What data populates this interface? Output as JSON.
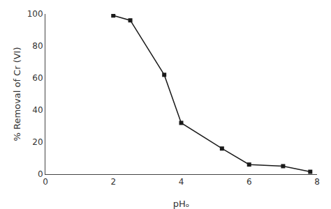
{
  "chart_data": {
    "type": "line",
    "xlabel": "pHₒ",
    "ylabel": "% Removal of Cr (VI)",
    "x": [
      2,
      2.5,
      3.5,
      4.0,
      5.2,
      6.0,
      7.0,
      7.8
    ],
    "values": [
      99,
      96,
      62,
      32,
      16,
      6,
      5,
      1.5
    ],
    "color": "#1a1a1a",
    "marker": "square",
    "line_style": "solid",
    "xlim": [
      0,
      8
    ],
    "ylim": [
      0,
      100
    ],
    "xticks": [
      0,
      2,
      4,
      6,
      8
    ],
    "yticks": [
      0,
      20,
      40,
      60,
      80,
      100
    ],
    "grid": false
  }
}
